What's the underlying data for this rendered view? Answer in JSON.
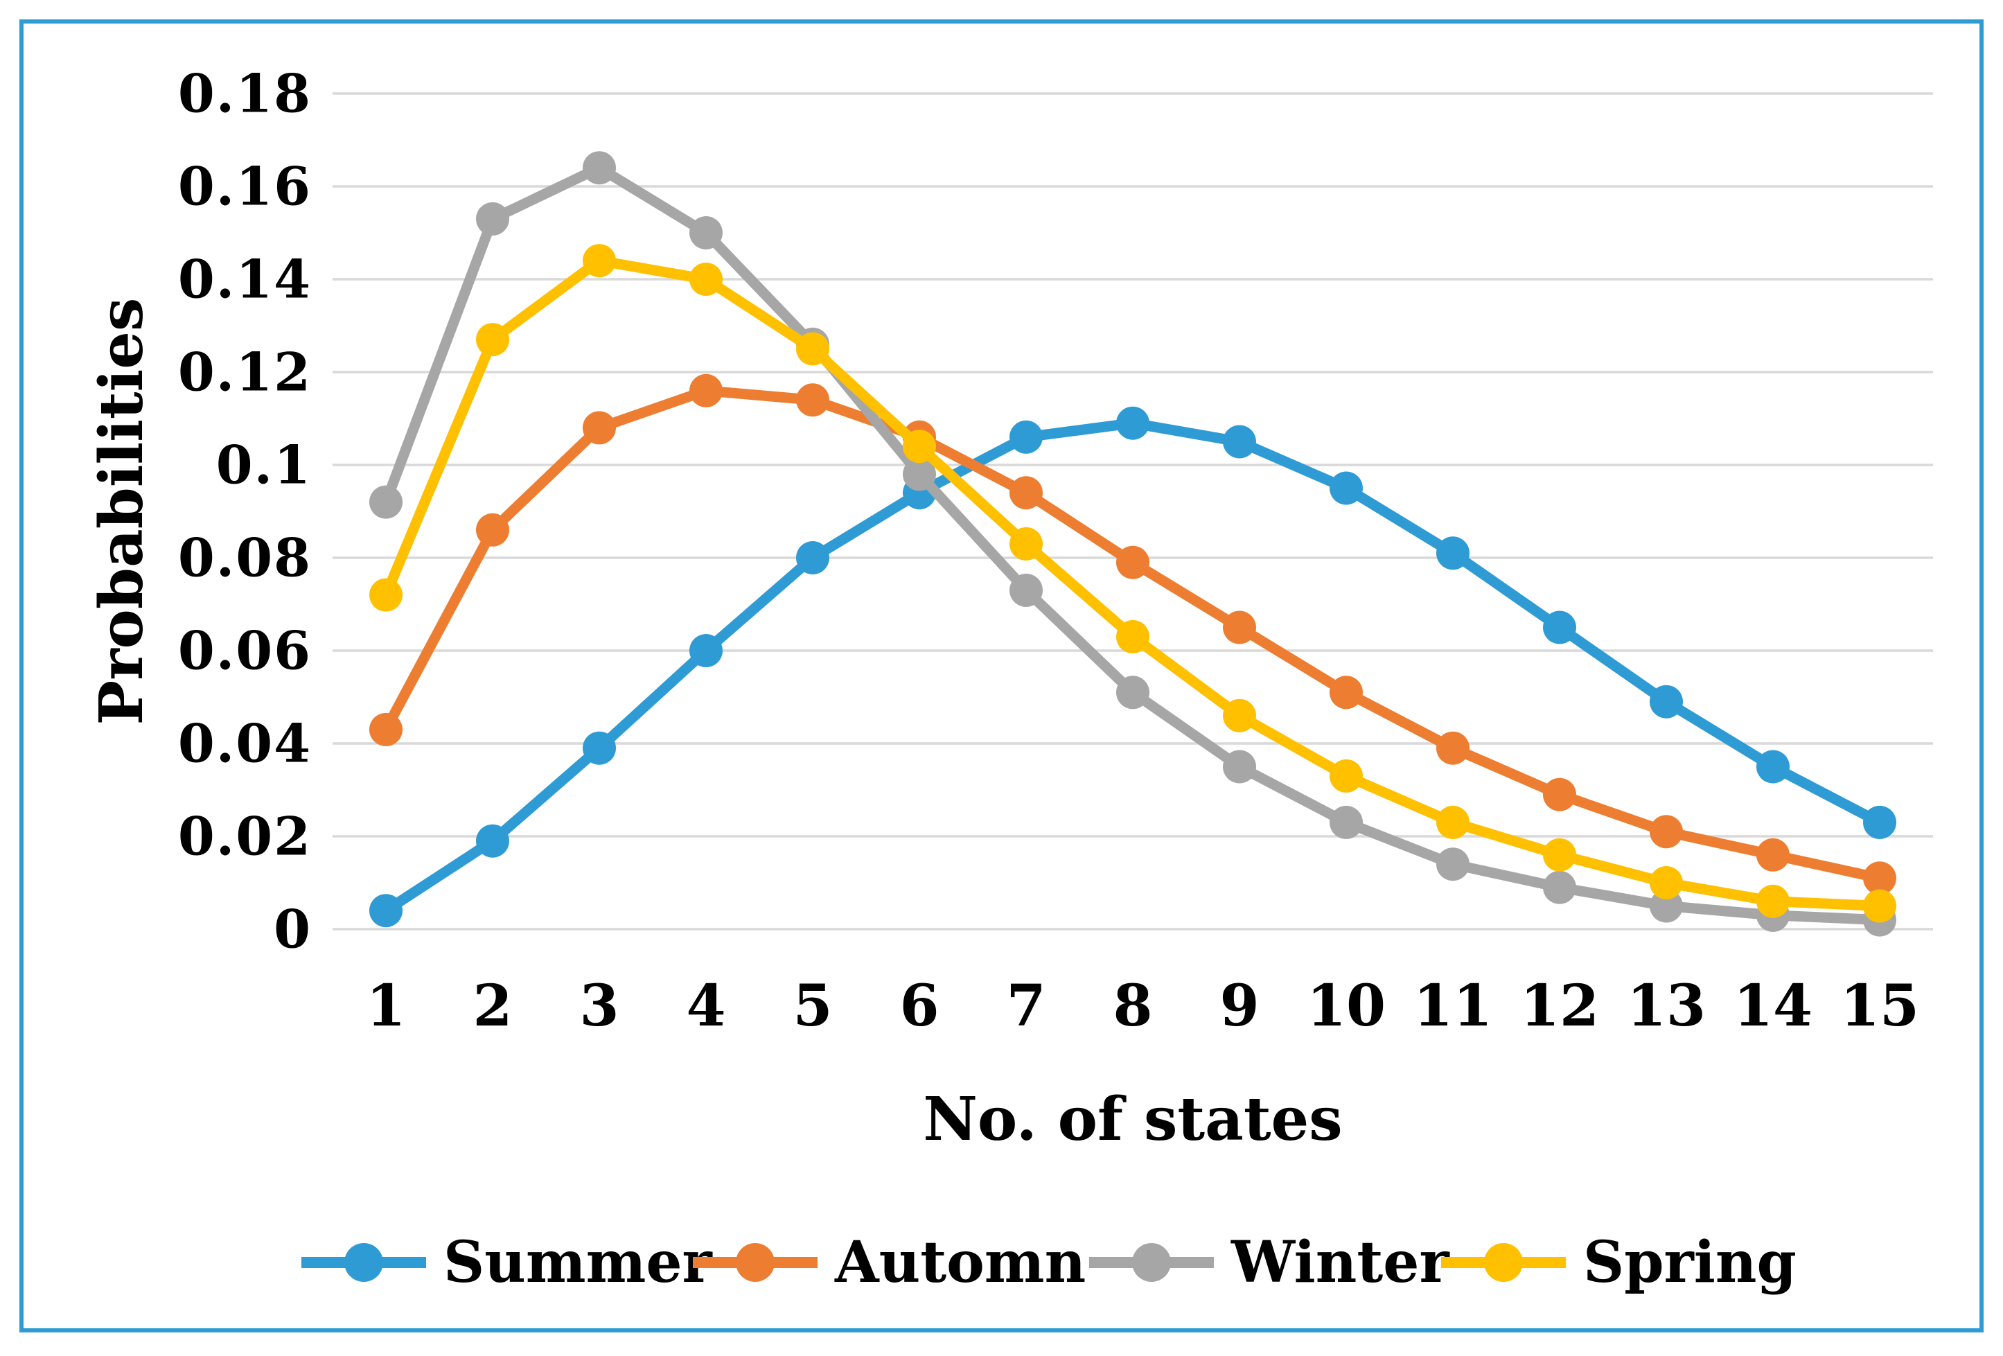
{
  "frame": {
    "border_color": "#2E9BD5",
    "background": "#FFFFFF"
  },
  "chart_data": {
    "type": "line",
    "title": "",
    "xlabel": "No. of states",
    "ylabel": "Probabilities",
    "x": [
      "1",
      "2",
      "3",
      "4",
      "5",
      "6",
      "7",
      "8",
      "9",
      "10",
      "11",
      "12",
      "13",
      "14",
      "15"
    ],
    "ylim": [
      0,
      0.18
    ],
    "yticks": [
      0.18,
      0.16,
      0.14,
      0.12,
      0.1,
      0.08,
      0.06,
      0.04,
      0.02,
      0
    ],
    "ytick_labels": [
      "0.18",
      "0.16",
      "0.14",
      "0.12",
      "0.1",
      "0.08",
      "0.06",
      "0.04",
      "0.02",
      "0"
    ],
    "grid": true,
    "gridline_color": "#D9D9D9",
    "legend_position": "bottom",
    "series": [
      {
        "name": "Summer",
        "color": "#2E9BD5",
        "values": [
          0.004,
          0.019,
          0.039,
          0.06,
          0.08,
          0.094,
          0.106,
          0.109,
          0.105,
          0.095,
          0.081,
          0.065,
          0.049,
          0.035,
          0.023
        ]
      },
      {
        "name": "Automn",
        "color": "#ED7D31",
        "values": [
          0.043,
          0.086,
          0.108,
          0.116,
          0.114,
          0.106,
          0.094,
          0.079,
          0.065,
          0.051,
          0.039,
          0.029,
          0.021,
          0.016,
          0.011
        ]
      },
      {
        "name": "Winter",
        "color": "#A6A6A6",
        "values": [
          0.092,
          0.153,
          0.164,
          0.15,
          0.126,
          0.098,
          0.073,
          0.051,
          0.035,
          0.023,
          0.014,
          0.009,
          0.005,
          0.003,
          0.002
        ]
      },
      {
        "name": "Spring",
        "color": "#FFC000",
        "values": [
          0.072,
          0.127,
          0.144,
          0.14,
          0.125,
          0.104,
          0.083,
          0.063,
          0.046,
          0.033,
          0.023,
          0.016,
          0.01,
          0.006,
          0.005
        ]
      }
    ]
  }
}
